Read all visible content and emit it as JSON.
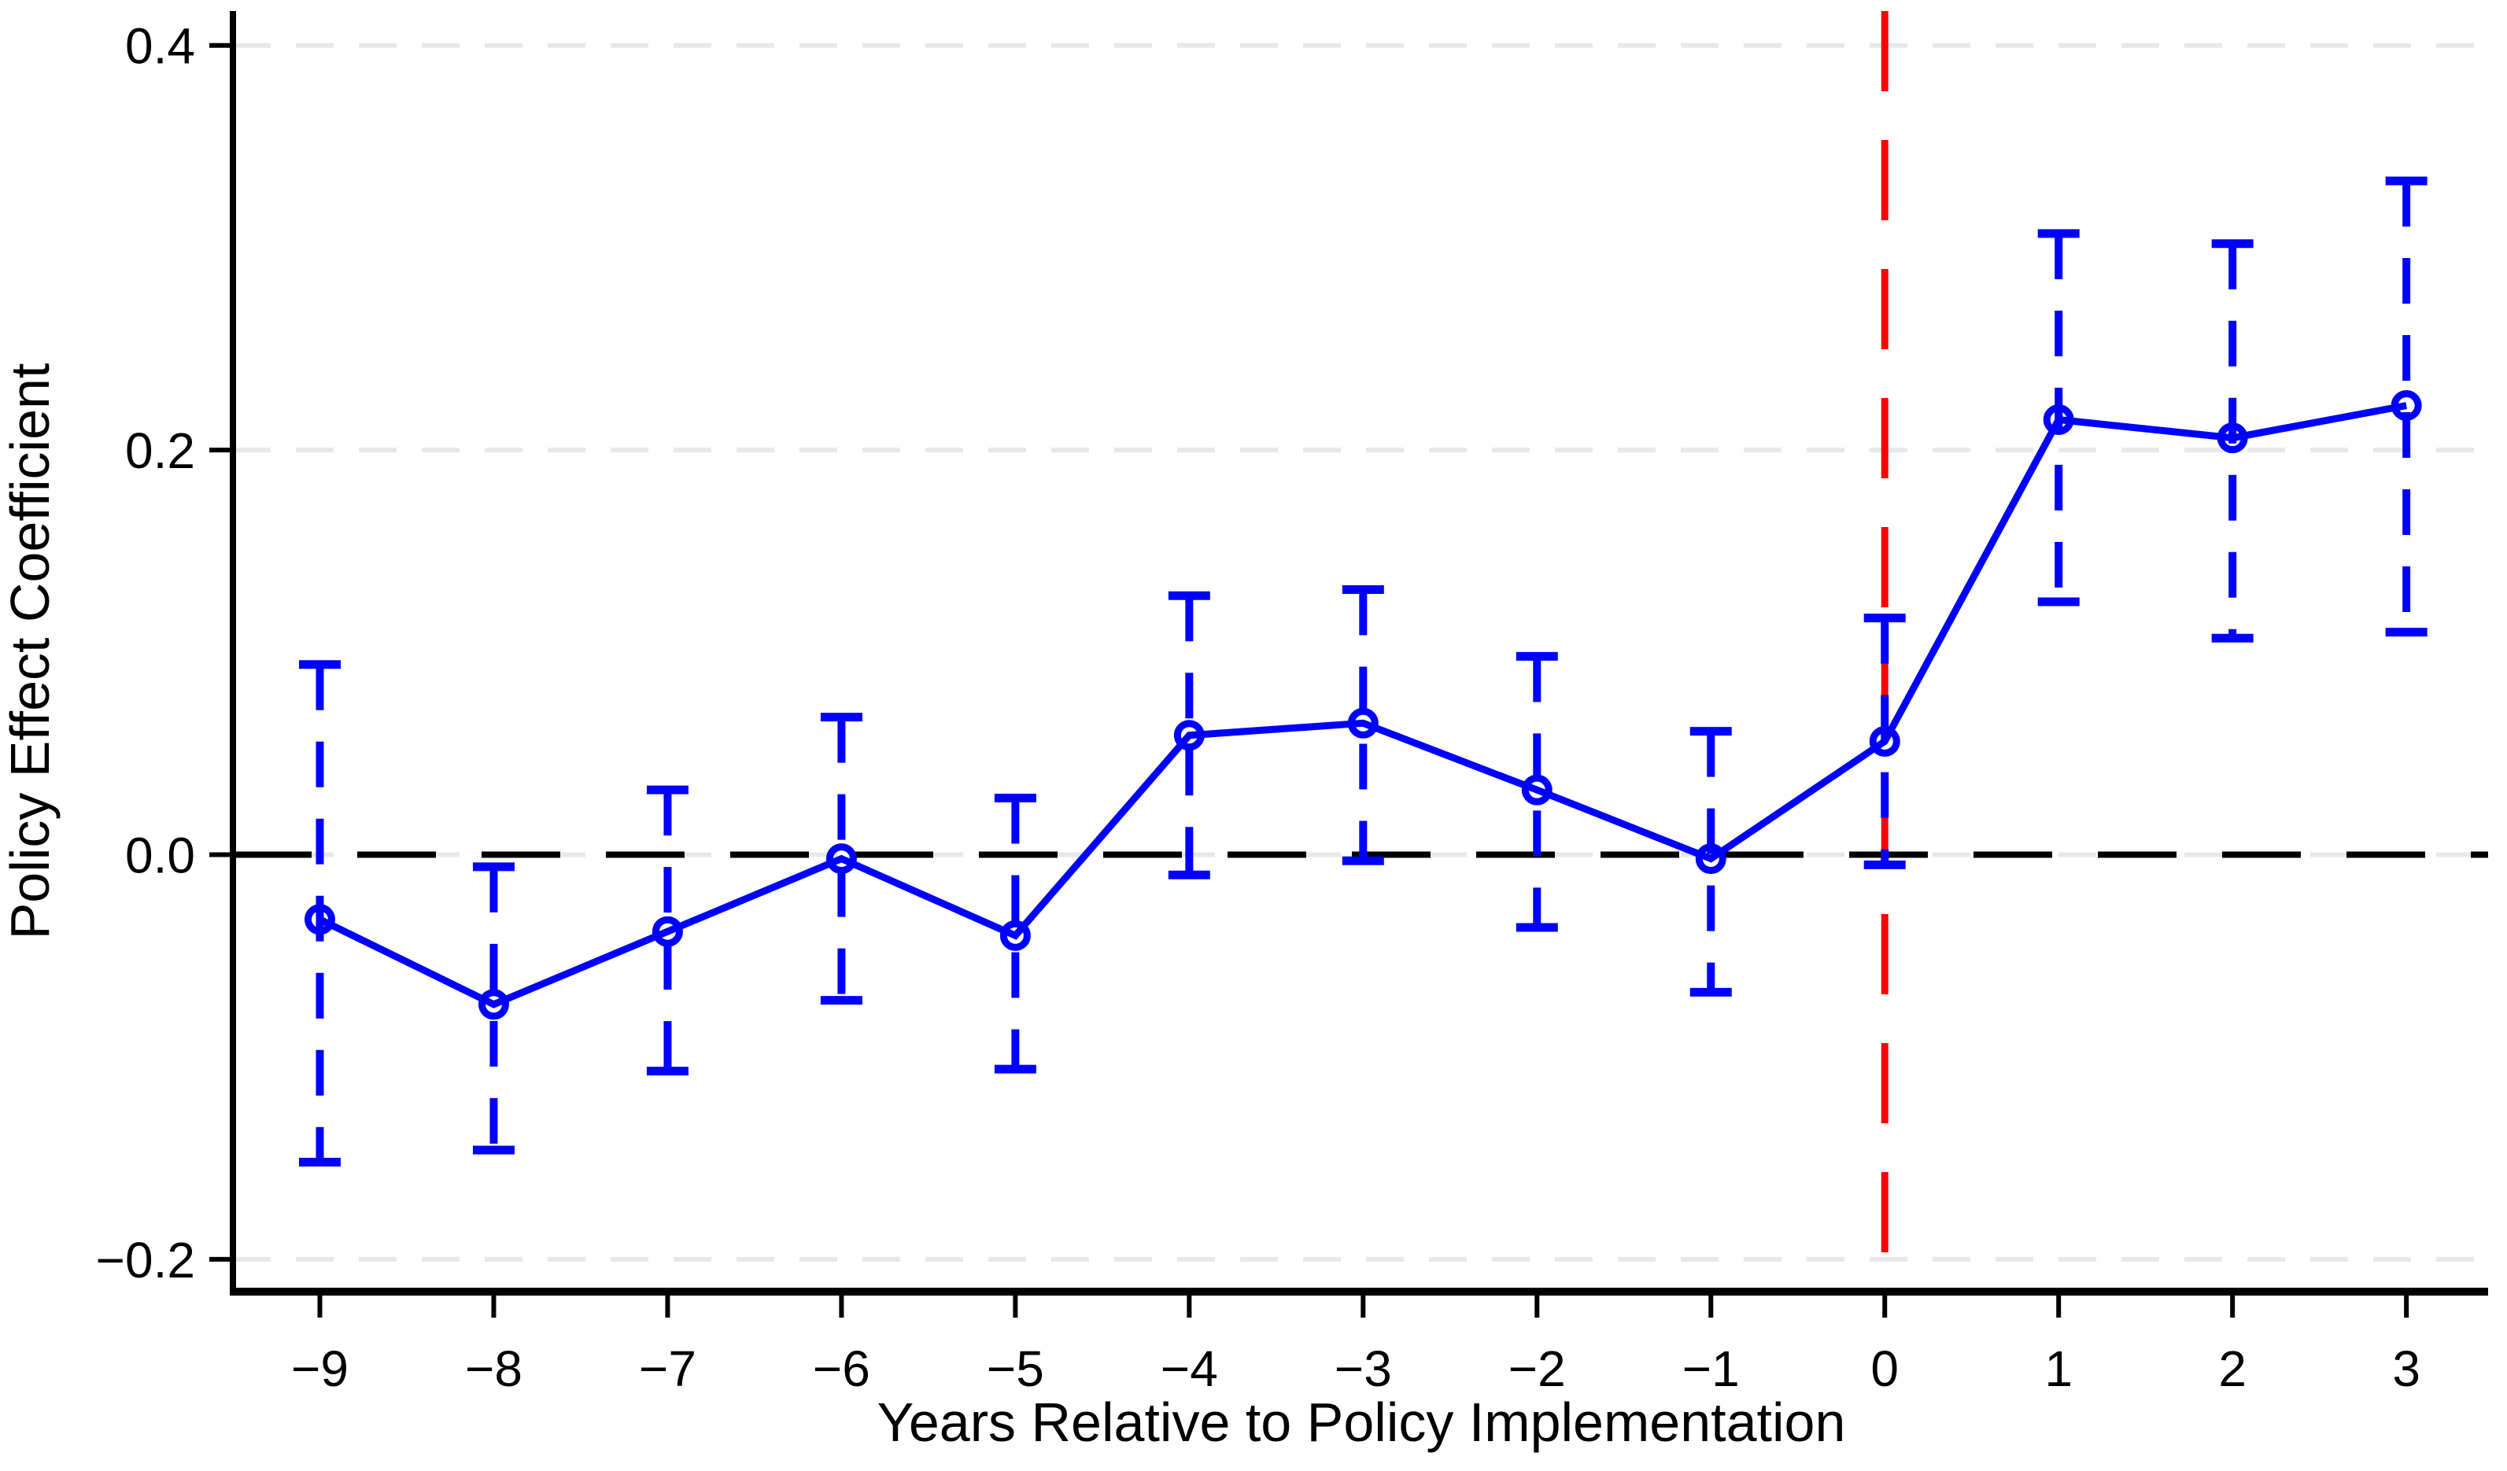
{
  "chart_data": {
    "type": "line",
    "title": "",
    "xlabel": "Years Relative to Policy Implementation",
    "ylabel": "Policy Effect Coefficient",
    "x": [
      -9,
      -8,
      -7,
      -6,
      -5,
      -4,
      -3,
      -2,
      -1,
      0,
      1,
      2,
      3
    ],
    "x_tick_labels": [
      "−9",
      "−8",
      "−7",
      "−6",
      "−5",
      "−4",
      "−3",
      "−2",
      "−1",
      "0",
      "1",
      "2",
      "3"
    ],
    "y_ticks": [
      -0.2,
      0.0,
      0.2,
      0.4
    ],
    "y_tick_labels": [
      "−0.2",
      "0.0",
      "0.2",
      "0.4"
    ],
    "xlim": [
      -9.5,
      3.47
    ],
    "ylim": [
      -0.216,
      0.417
    ],
    "grid": "horizontal-dashed-light",
    "legend": "none",
    "series": [
      {
        "name": "policy-effect-estimates",
        "marker": "hollow-circle",
        "line": "solid",
        "color": "#0000ff",
        "values": [
          -0.032,
          -0.074,
          -0.038,
          -0.002,
          -0.04,
          0.059,
          0.065,
          0.032,
          -0.002,
          0.056,
          0.215,
          0.206,
          0.222
        ],
        "ci_low": [
          -0.152,
          -0.146,
          -0.107,
          -0.072,
          -0.106,
          -0.01,
          -0.003,
          -0.036,
          -0.068,
          -0.005,
          0.125,
          0.107,
          0.11
        ],
        "ci_high": [
          0.094,
          -0.006,
          0.032,
          0.068,
          0.028,
          0.128,
          0.131,
          0.098,
          0.061,
          0.117,
          0.307,
          0.302,
          0.333
        ],
        "ci_style": "dashed-with-caps"
      }
    ],
    "reference_lines": [
      {
        "axis": "y",
        "value": 0,
        "style": "dashed",
        "color": "#000000",
        "label": "zero-effect-line"
      },
      {
        "axis": "x",
        "value": 0,
        "style": "dashed",
        "color": "#ff0000",
        "label": "policy-implementation-line"
      }
    ],
    "colors": {
      "series": "#0000ff",
      "zero_line": "#000000",
      "event_line": "#ff0000",
      "grid": "#e8e8e8",
      "axis": "#000000",
      "background": "#ffffff"
    }
  }
}
